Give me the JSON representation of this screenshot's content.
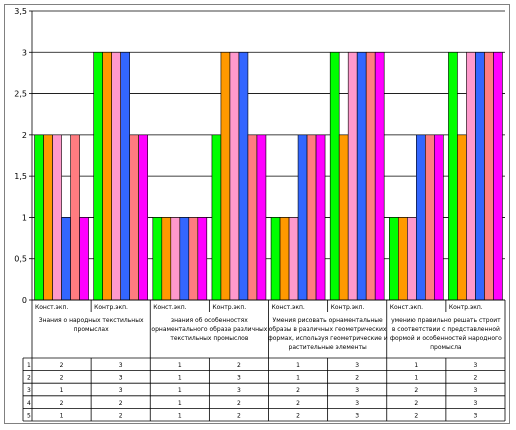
{
  "chart_data": {
    "type": "bar",
    "ylim": [
      0,
      3.5
    ],
    "yticks": [
      "0",
      "0,5",
      "1",
      "1,5",
      "2",
      "2,5",
      "3",
      "3,5"
    ],
    "grid": true,
    "colors": [
      "#00ff00",
      "#ff9900",
      "#ff99cc",
      "#3366ff",
      "#ff7c80",
      "#ff00ff"
    ],
    "phases": [
      "Конст.экп.",
      "Контр.экп."
    ],
    "groups": [
      "Знания о народных текстильных промыслах",
      "знания об особенностях орнаментального образа различных текстильных промыслов",
      "Умения рисовать орнаментальные образы в различных геометрических формах, используя геометрические и растительные элементы",
      "умению правильно решать строит в соответствии с представленной формой и особенностей народного промысла"
    ],
    "categories": [
      "Конст.экп. / Знания о народных текстильных промыслах",
      "Контр.экп. / Знания о народных текстильных промыслах",
      "Конст.экп. / знания об особенностях орнаментального образа",
      "Контр.экп. / знания об особенностях орнаментального образа",
      "Конст.экп. / Умения рисовать орнаментальные образы",
      "Контр.экп. / Умения рисовать орнаментальные образы",
      "Конст.экп. / умению правильно решать строит",
      "Контр.экп. / умению правильно решать строит"
    ],
    "series": [
      {
        "name": "1",
        "values": [
          2,
          3,
          1,
          2,
          1,
          3,
          1,
          3
        ]
      },
      {
        "name": "2",
        "values": [
          2,
          3,
          1,
          3,
          1,
          2,
          1,
          2
        ]
      },
      {
        "name": "",
        "values": [
          2,
          3,
          1,
          3,
          1,
          3,
          1,
          3
        ]
      },
      {
        "name": "3",
        "values": [
          1,
          3,
          1,
          3,
          2,
          3,
          2,
          3
        ]
      },
      {
        "name": "4",
        "values": [
          2,
          2,
          1,
          2,
          2,
          3,
          2,
          3
        ]
      },
      {
        "name": "5",
        "values": [
          1,
          2,
          1,
          2,
          2,
          3,
          2,
          3
        ]
      }
    ],
    "table": [
      {
        "label": "1",
        "values": [
          "2",
          "3",
          "1",
          "2",
          "1",
          "3",
          "1",
          "3"
        ]
      },
      {
        "label": "2",
        "values": [
          "2",
          "3",
          "1",
          "3",
          "1",
          "2",
          "1",
          "2"
        ]
      },
      {
        "label": "3",
        "values": [
          "1",
          "3",
          "1",
          "3",
          "2",
          "3",
          "2",
          "3"
        ]
      },
      {
        "label": "4",
        "values": [
          "2",
          "2",
          "1",
          "2",
          "2",
          "3",
          "2",
          "3"
        ]
      },
      {
        "label": "5",
        "values": [
          "1",
          "2",
          "1",
          "2",
          "2",
          "3",
          "2",
          "3"
        ]
      }
    ]
  }
}
